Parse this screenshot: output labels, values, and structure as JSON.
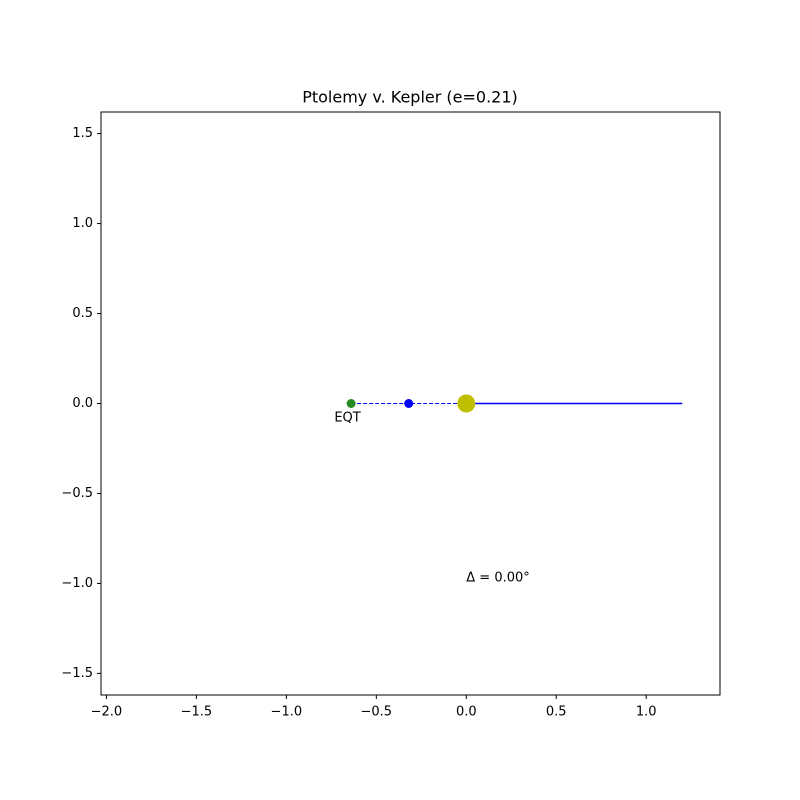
{
  "chart_data": {
    "type": "scatter",
    "title": "Ptolemy v. Kepler (e=0.21)",
    "xlim": [
      -2.03,
      1.41
    ],
    "ylim": [
      -1.62,
      1.62
    ],
    "xticks": [
      {
        "value": -2.0,
        "label": "−2.0"
      },
      {
        "value": -1.5,
        "label": "−1.5"
      },
      {
        "value": -1.0,
        "label": "−1.0"
      },
      {
        "value": -0.5,
        "label": "−0.5"
      },
      {
        "value": 0.0,
        "label": "0.0"
      },
      {
        "value": 0.5,
        "label": "0.5"
      },
      {
        "value": 1.0,
        "label": "1.0"
      }
    ],
    "yticks": [
      {
        "value": -1.5,
        "label": "−1.5"
      },
      {
        "value": -1.0,
        "label": "−1.0"
      },
      {
        "value": -0.5,
        "label": "−0.5"
      },
      {
        "value": 0.0,
        "label": "0.0"
      },
      {
        "value": 0.5,
        "label": "0.5"
      },
      {
        "value": 1.0,
        "label": "1.0"
      },
      {
        "value": 1.5,
        "label": "1.5"
      }
    ],
    "lines": [
      {
        "color": "#0000ff",
        "dashed": false,
        "x": [
          0,
          1.2
        ],
        "y": [
          0,
          0
        ]
      },
      {
        "color": "#0000ff",
        "dashed": true,
        "x": [
          -0.64,
          0
        ],
        "y": [
          0,
          0
        ]
      }
    ],
    "points": [
      {
        "color": "#228b22",
        "marker_size": 4.5,
        "x": [
          -0.64
        ],
        "y": [
          0
        ]
      },
      {
        "color": "#0000ff",
        "marker_size": 4.5,
        "x": [
          -0.32
        ],
        "y": [
          0
        ]
      },
      {
        "color": "#bfbf00",
        "marker_size": 9,
        "x": [
          0
        ],
        "y": [
          0
        ]
      }
    ],
    "annotations": [
      {
        "text": "EQT",
        "x": -0.66,
        "y": -0.08
      },
      {
        "text": "Δ = 0.00°",
        "x": 0.0,
        "y": -0.97
      }
    ]
  }
}
